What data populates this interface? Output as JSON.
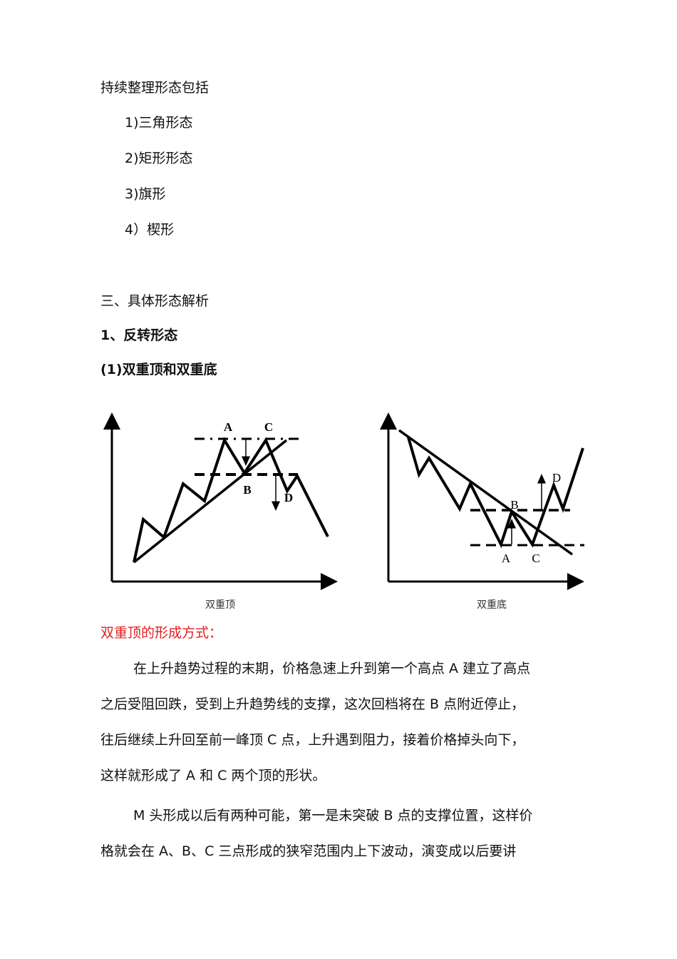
{
  "intro": "持续整理形态包括",
  "list": [
    "1)三角形态",
    "2)矩形形态",
    "3)旗形",
    "4）楔形"
  ],
  "section3": "三、具体形态解析",
  "sub1": "1、反转形态",
  "sub1_1": "(1)双重顶和双重底",
  "diagrams": {
    "double_top": {
      "caption": "双重顶",
      "labels": {
        "a": "A",
        "b": "B",
        "c": "C",
        "d": "D"
      }
    },
    "double_bottom": {
      "caption": "双重底",
      "labels": {
        "a": "A",
        "b": "B",
        "c": "C",
        "d": "D"
      }
    }
  },
  "red_heading": "双重顶的形成方式：",
  "para1": [
    "在上升趋势过程的末期，价格急速上升到第一个高点 A 建立了高点",
    "之后受阻回跌，受到上升趋势线的支撑，这次回档将在 B 点附近停止，",
    "往后继续上升回至前一峰顶 C 点，上升遇到阻力，接着价格掉头向下，",
    "这样就形成了 A 和 C 两个顶的形状。"
  ],
  "para2": [
    "M 头形成以后有两种可能，第一是未突破 B 点的支撑位置，这样价",
    "格就会在 A、B、C 三点形成的狭窄范围内上下波动，演变成以后要讲"
  ],
  "colors": {
    "heading_red": "#e02020"
  }
}
